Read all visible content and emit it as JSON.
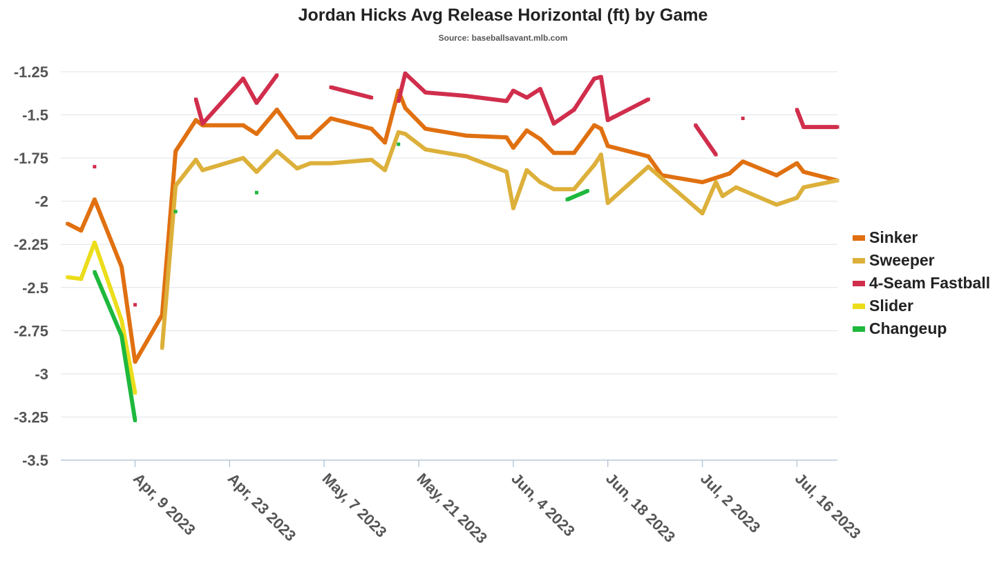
{
  "chart_data": {
    "type": "line",
    "title": "Jordan Hicks Avg Release Horizontal (ft) by Game",
    "subtitle": "Source: baseballsavant.mlb.com",
    "xlabel": "",
    "ylabel": "",
    "x_axis_type": "date",
    "xlim": [
      "2023-03-29",
      "2023-07-22"
    ],
    "ylim": [
      -3.5,
      -1.25
    ],
    "y_ticks": [
      -1.25,
      -1.5,
      -1.75,
      -2,
      -2.25,
      -2.5,
      -2.75,
      -3,
      -3.25,
      -3.5
    ],
    "y_tick_labels": [
      "-1.25",
      "-1.5",
      "-1.75",
      "-2",
      "-2.25",
      "-2.5",
      "-2.75",
      "-3",
      "-3.25",
      "-3.5"
    ],
    "x_ticks": [
      "2023-04-09",
      "2023-04-23",
      "2023-05-07",
      "2023-05-21",
      "2023-06-04",
      "2023-06-18",
      "2023-07-02",
      "2023-07-16"
    ],
    "x_tick_labels": [
      "Apr, 9 2023",
      "Apr, 23 2023",
      "May, 7 2023",
      "May, 21 2023",
      "Jun, 4 2023",
      "Jun, 18 2023",
      "Jul, 2 2023",
      "Jul, 16 2023"
    ],
    "grid": true,
    "legend_position": "right",
    "series": [
      {
        "name": "Sinker",
        "color": "#e07010",
        "points": [
          [
            "2023-03-30",
            -2.13
          ],
          [
            "2023-04-01",
            -2.17
          ],
          [
            "2023-04-03",
            -1.99
          ],
          [
            "2023-04-07",
            -2.38
          ],
          [
            "2023-04-09",
            -2.93
          ],
          [
            "2023-04-13",
            -2.66
          ],
          [
            "2023-04-15",
            -1.71
          ],
          [
            "2023-04-18",
            -1.53
          ],
          [
            "2023-04-19",
            -1.56
          ],
          [
            "2023-04-23",
            -1.56
          ],
          [
            "2023-04-25",
            -1.56
          ],
          [
            "2023-04-27",
            -1.61
          ],
          [
            "2023-04-30",
            -1.47
          ],
          [
            "2023-05-03",
            -1.63
          ],
          [
            "2023-05-05",
            -1.63
          ],
          [
            "2023-05-08",
            -1.52
          ],
          [
            "2023-05-14",
            -1.58
          ],
          [
            "2023-05-16",
            -1.66
          ],
          [
            "2023-05-18",
            -1.36
          ],
          [
            "2023-05-19",
            -1.46
          ],
          [
            "2023-05-22",
            -1.58
          ],
          [
            "2023-05-28",
            -1.62
          ],
          [
            "2023-06-03",
            -1.63
          ],
          [
            "2023-06-04",
            -1.69
          ],
          [
            "2023-06-06",
            -1.59
          ],
          [
            "2023-06-08",
            -1.64
          ],
          [
            "2023-06-10",
            -1.72
          ],
          [
            "2023-06-13",
            -1.72
          ],
          [
            "2023-06-16",
            -1.56
          ],
          [
            "2023-06-17",
            -1.58
          ],
          [
            "2023-06-18",
            -1.68
          ],
          [
            "2023-06-24",
            -1.74
          ],
          [
            "2023-06-26",
            -1.85
          ],
          [
            "2023-07-02",
            -1.89
          ],
          [
            "2023-07-06",
            -1.84
          ],
          [
            "2023-07-08",
            -1.77
          ],
          [
            "2023-07-13",
            -1.85
          ],
          [
            "2023-07-16",
            -1.78
          ],
          [
            "2023-07-17",
            -1.83
          ],
          [
            "2023-07-22",
            -1.88
          ]
        ]
      },
      {
        "name": "Sweeper",
        "color": "#dcb03a",
        "points": [
          [
            "2023-04-13",
            -2.85
          ],
          [
            "2023-04-15",
            -1.91
          ],
          [
            "2023-04-18",
            -1.76
          ],
          [
            "2023-04-19",
            -1.82
          ],
          [
            "2023-04-25",
            -1.75
          ],
          [
            "2023-04-27",
            -1.83
          ],
          [
            "2023-04-30",
            -1.71
          ],
          [
            "2023-05-03",
            -1.81
          ],
          [
            "2023-05-05",
            -1.78
          ],
          [
            "2023-05-08",
            -1.78
          ],
          [
            "2023-05-14",
            -1.76
          ],
          [
            "2023-05-16",
            -1.82
          ],
          [
            "2023-05-18",
            -1.6
          ],
          [
            "2023-05-19",
            -1.61
          ],
          [
            "2023-05-22",
            -1.7
          ],
          [
            "2023-05-28",
            -1.74
          ],
          [
            "2023-06-03",
            -1.83
          ],
          [
            "2023-06-04",
            -2.04
          ],
          [
            "2023-06-06",
            -1.82
          ],
          [
            "2023-06-08",
            -1.89
          ],
          [
            "2023-06-10",
            -1.93
          ],
          [
            "2023-06-13",
            -1.93
          ],
          [
            "2023-06-16",
            -1.79
          ],
          [
            "2023-06-17",
            -1.73
          ],
          [
            "2023-06-18",
            -2.01
          ],
          [
            "2023-06-24",
            -1.8
          ],
          [
            "2023-07-02",
            -2.07
          ],
          [
            "2023-07-04",
            -1.89
          ],
          [
            "2023-07-05",
            -1.97
          ],
          [
            "2023-07-07",
            -1.92
          ],
          [
            "2023-07-13",
            -2.02
          ],
          [
            "2023-07-16",
            -1.98
          ],
          [
            "2023-07-17",
            -1.92
          ],
          [
            "2023-07-22",
            -1.88
          ]
        ]
      },
      {
        "name": "4-Seam Fastball",
        "color": "#d02e4c",
        "points": [
          [
            "2023-04-03",
            -1.8
          ],
          [
            "2023-04-09",
            -2.6
          ],
          [
            "2023-04-18",
            -1.41
          ],
          [
            "2023-04-19",
            -1.55
          ],
          [
            "2023-04-25",
            -1.29
          ],
          [
            "2023-04-27",
            -1.43
          ],
          [
            "2023-04-30",
            -1.27
          ],
          [
            "2023-05-08",
            -1.34
          ],
          [
            "2023-05-14",
            -1.4
          ],
          [
            "2023-05-18",
            -1.42
          ],
          [
            "2023-05-19",
            -1.26
          ],
          [
            "2023-05-22",
            -1.37
          ],
          [
            "2023-05-28",
            -1.39
          ],
          [
            "2023-06-03",
            -1.42
          ],
          [
            "2023-06-04",
            -1.36
          ],
          [
            "2023-06-06",
            -1.4
          ],
          [
            "2023-06-08",
            -1.35
          ],
          [
            "2023-06-10",
            -1.55
          ],
          [
            "2023-06-13",
            -1.47
          ],
          [
            "2023-06-16",
            -1.29
          ],
          [
            "2023-06-17",
            -1.28
          ],
          [
            "2023-06-18",
            -1.53
          ],
          [
            "2023-06-24",
            -1.41
          ],
          [
            "2023-07-01",
            -1.56
          ],
          [
            "2023-07-04",
            -1.73
          ],
          [
            "2023-07-08",
            -1.52
          ],
          [
            "2023-07-16",
            -1.47
          ],
          [
            "2023-07-17",
            -1.57
          ],
          [
            "2023-07-22",
            -1.57
          ]
        ],
        "segments": [
          [
            "2023-04-03",
            "2023-04-03"
          ],
          [
            "2023-04-09",
            "2023-04-09"
          ],
          [
            "2023-04-18",
            "2023-04-30"
          ],
          [
            "2023-05-08",
            "2023-05-14"
          ],
          [
            "2023-05-18",
            "2023-06-24"
          ],
          [
            "2023-07-01",
            "2023-07-04"
          ],
          [
            "2023-07-08",
            "2023-07-08"
          ],
          [
            "2023-07-16",
            "2023-07-22"
          ]
        ]
      },
      {
        "name": "Slider",
        "color": "#ecdd1c",
        "points": [
          [
            "2023-03-30",
            -2.44
          ],
          [
            "2023-04-01",
            -2.45
          ],
          [
            "2023-04-03",
            -2.24
          ],
          [
            "2023-04-07",
            -2.69
          ],
          [
            "2023-04-09",
            -3.11
          ]
        ]
      },
      {
        "name": "Changeup",
        "color": "#1eb83c",
        "points": [
          [
            "2023-04-03",
            -2.41
          ],
          [
            "2023-04-07",
            -2.78
          ],
          [
            "2023-04-09",
            -3.27
          ],
          [
            "2023-04-15",
            -2.06
          ],
          [
            "2023-04-27",
            -1.95
          ],
          [
            "2023-05-18",
            -1.67
          ],
          [
            "2023-06-12",
            -1.99
          ],
          [
            "2023-06-15",
            -1.94
          ]
        ],
        "segments": [
          [
            "2023-04-03",
            "2023-04-09"
          ],
          [
            "2023-04-15",
            "2023-04-15"
          ],
          [
            "2023-04-27",
            "2023-04-27"
          ],
          [
            "2023-05-18",
            "2023-05-18"
          ],
          [
            "2023-06-12",
            "2023-06-15"
          ]
        ]
      }
    ]
  }
}
